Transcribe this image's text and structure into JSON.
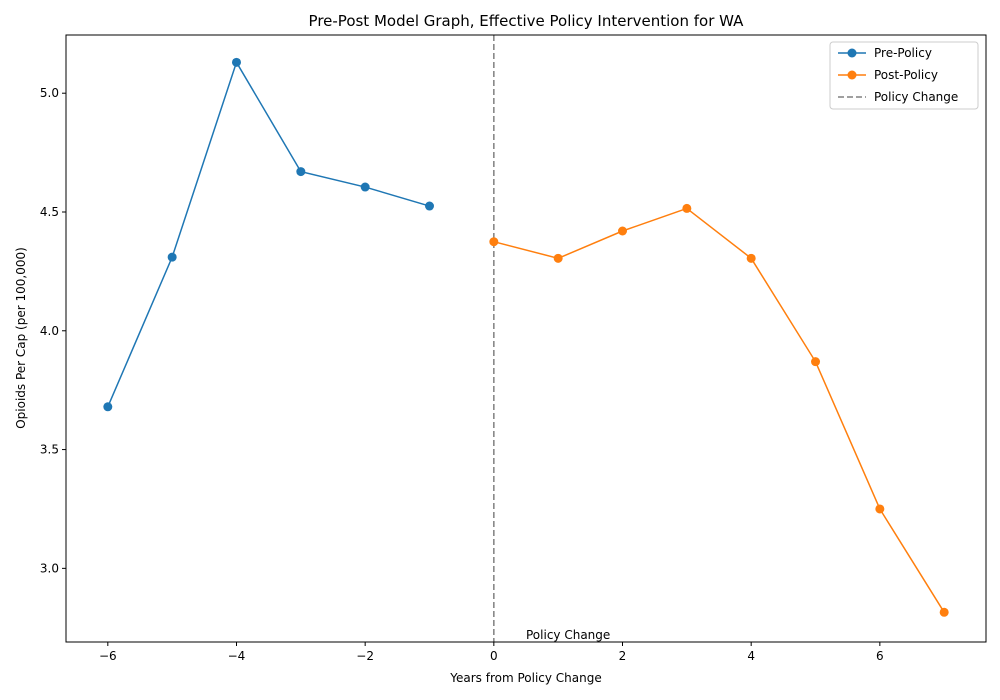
{
  "chart_data": {
    "type": "line",
    "title": "Pre-Post Model Graph, Effective Policy Intervention for WA",
    "xlabel": "Years from Policy Change",
    "ylabel": "Opioids Per Cap (per 100,000)",
    "xlim": [
      -6.65,
      7.65
    ],
    "ylim": [
      2.69,
      5.245
    ],
    "xticks": [
      -6,
      -4,
      -2,
      0,
      2,
      4,
      6
    ],
    "xtick_labels": [
      "−6",
      "−4",
      "−2",
      "0",
      "2",
      "4",
      "6"
    ],
    "yticks": [
      3.0,
      3.5,
      4.0,
      4.5,
      5.0
    ],
    "ytick_labels": [
      "3.0",
      "3.5",
      "4.0",
      "4.5",
      "5.0"
    ],
    "grid": false,
    "legend_position": "top-right",
    "series": [
      {
        "name": "Pre-Policy",
        "color": "#1f77b4",
        "marker": "circle",
        "x": [
          -6,
          -5,
          -4,
          -3,
          -2,
          -1
        ],
        "y": [
          3.68,
          4.31,
          5.13,
          4.67,
          4.605,
          4.525
        ]
      },
      {
        "name": "Post-Policy",
        "color": "#ff7f0e",
        "marker": "circle",
        "x": [
          0,
          1,
          2,
          3,
          4,
          5,
          6,
          7
        ],
        "y": [
          4.375,
          4.305,
          4.42,
          4.515,
          4.305,
          3.87,
          3.25,
          2.815
        ]
      }
    ],
    "reference_lines": [
      {
        "name": "Policy Change",
        "orientation": "vertical",
        "x": 0,
        "color": "#808080",
        "style": "dashed"
      }
    ],
    "annotations": [
      {
        "text": "Policy Change",
        "x": 0.5,
        "y": 2.69
      }
    ]
  }
}
